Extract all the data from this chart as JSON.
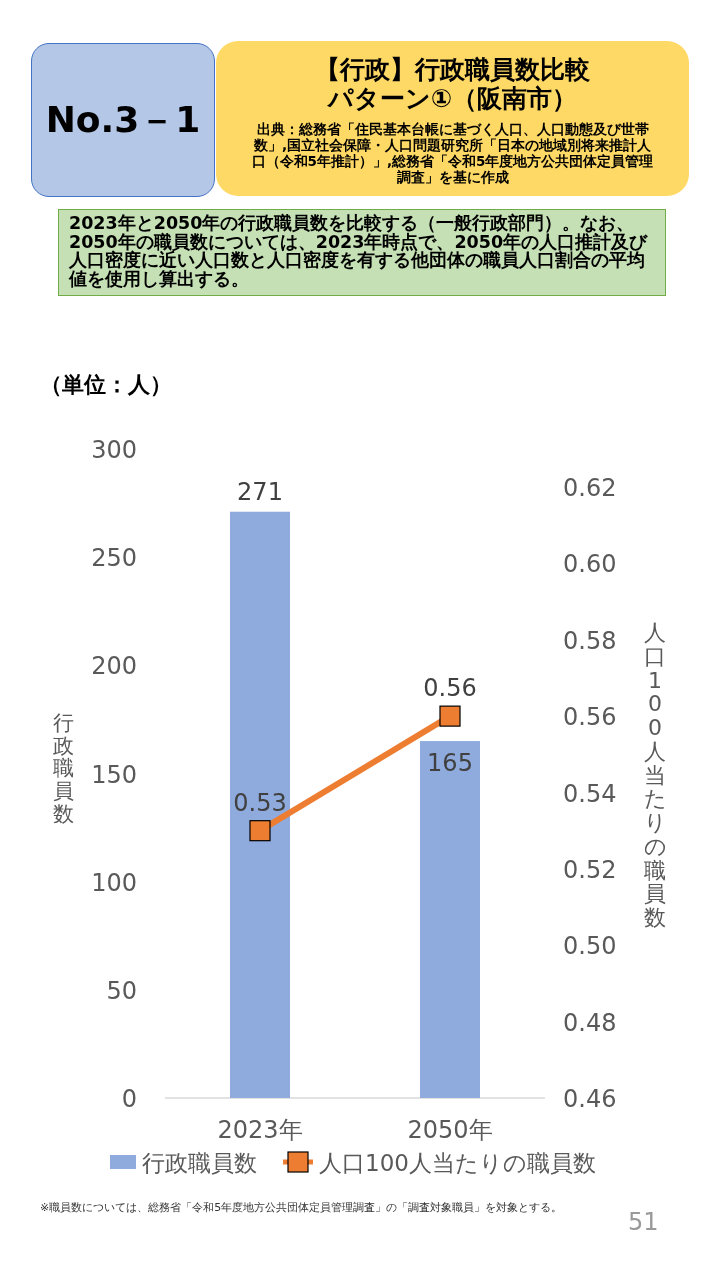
{
  "chart_data": {
    "type": "bar",
    "title": "【行政】行政職員数比較パターン①（阪南市）",
    "subtitle": "出典：総務省「住民基本台帳に基づく人口、人口動態及び世帯数」,国立社会保障・人口問題研究所「日本の地域別将来推計人口（令和5年推計）」,総務省「令和5年度地方公共団体定員管理調査」を基に作成",
    "annotations": [
      "No.3－1",
      "2023年と2050年の行政職員数を比較する（一般行政部門）。なお、2050年の職員数については、2023年時点で、2050年の人口推計及び人口密度に近い人口数と人口密度を有する他団体の職員人口割合の平均値を使用し算出する。",
      "（単位：人）",
      "※職員数については、総務省「令和5年度地方公共団体定員管理調査」の「調査対象職員」を対象とする。",
      "51"
    ],
    "ylabel": "行政職員数",
    "y2label": "人口100人当たりの職員数",
    "categories": [
      "2023年",
      "2050年"
    ],
    "series": [
      {
        "name": "行政職員数",
        "color": "#8faadc",
        "values": [
          271,
          165
        ]
      },
      {
        "name": "人口100人当たりの職員数",
        "type": "line",
        "axis": "y2",
        "color": "#ed7d31",
        "marker": "square",
        "values": [
          0.53,
          0.56
        ]
      }
    ],
    "ylim": [
      0,
      300
    ],
    "yticks": [
      0,
      50,
      100,
      150,
      200,
      250,
      300
    ],
    "y2lim": [
      0.46,
      0.62
    ],
    "y2ticks": [
      {
        "value": 0.46,
        "label": "0.46"
      },
      {
        "value": 0.48,
        "label": "0.48"
      },
      {
        "value": 0.5,
        "label": "0.50"
      },
      {
        "value": 0.52,
        "label": "0.52"
      },
      {
        "value": 0.54,
        "label": "0.54"
      },
      {
        "value": 0.56,
        "label": "0.56"
      },
      {
        "value": 0.58,
        "label": "0.58"
      },
      {
        "value": 0.6,
        "label": "0.60"
      },
      {
        "value": 0.62,
        "label": "0.62"
      }
    ],
    "data_labels": true,
    "legend": "bottom",
    "grid": false
  }
}
